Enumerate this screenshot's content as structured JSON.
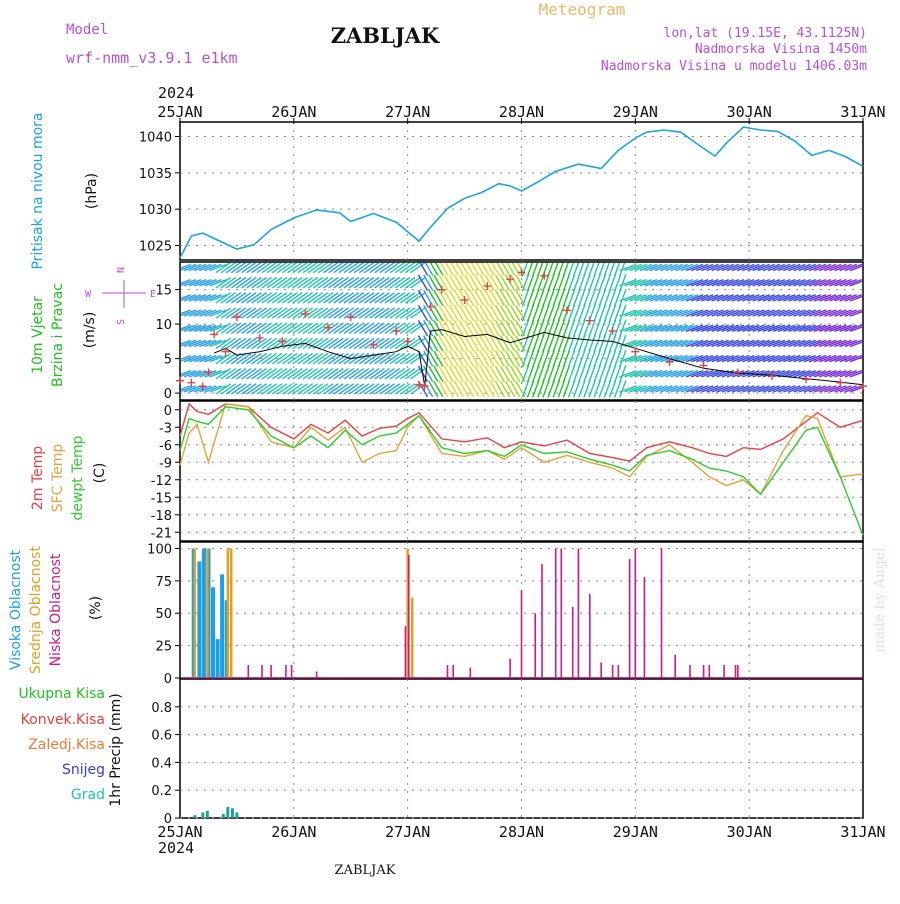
{
  "header": {
    "model_label": "Model",
    "model_name": "wrf-nmm_v3.9.1 e1km",
    "station_title": "ZABLJAK",
    "meteogram_label": "Meteogram",
    "lonlat": "lon,lat (19.15E, 43.1125N)",
    "elevation": "Nadmorska Visina 1450m",
    "model_elevation": "Nadmorska Visina u modelu 1406.03m",
    "year_top": "2024",
    "year_bottom": "2024",
    "footer_title": "ZABLJAK",
    "watermark": "made by Angel"
  },
  "colors": {
    "pressure": "#1aa3e6",
    "t2m": "#e84040",
    "sfc": "#e3a33a",
    "dew": "#2ecc2e",
    "high_cloud": "#1e9ee6",
    "mid_cloud": "#e3a020",
    "low_cloud": "#cc1a8a",
    "magenta_label": "#b84fd6",
    "gust": "#e04040",
    "wind_mean": "#000000"
  },
  "chart_data": [
    {
      "type": "line",
      "panel": "pressure",
      "ylabel_lines": [
        "Pritisak na nivou mora",
        "(hPa)"
      ],
      "ylim": [
        1023,
        1042
      ],
      "yticks": [
        "1025",
        "1030",
        "1035",
        "1040"
      ],
      "x_ticks": [
        "25JAN",
        "26JAN",
        "27JAN",
        "28JAN",
        "29JAN",
        "30JAN",
        "31JAN"
      ],
      "x_days": [
        0,
        6
      ],
      "series": [
        {
          "x": [
            0,
            0.1,
            0.2,
            0.35,
            0.5,
            0.65,
            0.8,
            1.0,
            1.2,
            1.4,
            1.5,
            1.7,
            1.9,
            2.0,
            2.1,
            2.2,
            2.35,
            2.5,
            2.65,
            2.8,
            2.9,
            3.0,
            3.15,
            3.3,
            3.5,
            3.7,
            3.85,
            4.0,
            4.1,
            4.25,
            4.4,
            4.55,
            4.7,
            4.8,
            4.95,
            5.1,
            5.25,
            5.4,
            5.55,
            5.7,
            5.85,
            6.0
          ],
          "values": [
            1023.3,
            1026.3,
            1026.7,
            1025.6,
            1024.5,
            1025.1,
            1027.2,
            1028.8,
            1029.9,
            1029.5,
            1028.3,
            1029.4,
            1028.2,
            1026.9,
            1025.6,
            1027.5,
            1030.1,
            1031.5,
            1032.3,
            1033.5,
            1033.2,
            1032.5,
            1033.8,
            1035.2,
            1036.2,
            1035.6,
            1038.1,
            1039.8,
            1040.6,
            1040.9,
            1040.6,
            1038.9,
            1037.3,
            1039.1,
            1041.3,
            1040.9,
            1040.7,
            1039.4,
            1037.4,
            1038.1,
            1037.2,
            1035.9
          ]
        }
      ]
    },
    {
      "type": "line",
      "panel": "wind",
      "ylabel_lines": [
        "10m Vjetar",
        "Brzina i Pravac",
        "(m/s)"
      ],
      "compass_labels": [
        "N",
        "E",
        "S",
        "W"
      ],
      "ylim": [
        -1,
        19
      ],
      "yticks": [
        "0",
        "5",
        "10",
        "15"
      ],
      "series": [
        {
          "name": "mean_speed",
          "x": [
            0.3,
            0.4,
            0.5,
            0.7,
            0.9,
            1.1,
            1.3,
            1.5,
            1.7,
            1.9,
            2.0,
            2.1,
            2.15,
            2.2,
            2.3,
            2.5,
            2.7,
            2.9,
            3.0,
            3.2,
            3.4,
            3.6,
            3.8,
            4.0,
            4.3,
            4.6,
            4.9,
            5.2,
            5.5,
            5.8,
            6.0
          ],
          "values": [
            5.8,
            6.5,
            5.5,
            6.0,
            6.8,
            7.2,
            6.0,
            5.0,
            5.5,
            6.0,
            6.8,
            6.0,
            1.0,
            9.0,
            9.2,
            8.2,
            8.5,
            7.3,
            7.8,
            8.8,
            8.0,
            7.7,
            7.5,
            6.5,
            5.0,
            3.6,
            2.9,
            2.6,
            2.1,
            1.6,
            1.2
          ]
        },
        {
          "name": "gust",
          "x": [
            0.0,
            0.1,
            0.2,
            0.25,
            0.3,
            0.4,
            0.5,
            0.7,
            0.9,
            1.1,
            1.3,
            1.5,
            1.7,
            1.9,
            2.0,
            2.1,
            2.15,
            2.2,
            2.3,
            2.5,
            2.7,
            2.9,
            3.0,
            3.2,
            3.4,
            3.6,
            3.8,
            4.0,
            4.3,
            4.6,
            4.9,
            5.2,
            5.5,
            5.8,
            6.0
          ],
          "values": [
            1.8,
            1.5,
            1.0,
            3.0,
            8.5,
            6.0,
            11.0,
            8.0,
            7.5,
            11.5,
            9.5,
            11.0,
            7.0,
            9.0,
            7.5,
            1.2,
            1.0,
            12.5,
            15.0,
            13.5,
            15.5,
            16.5,
            17.5,
            17.0,
            12.0,
            10.5,
            9.0,
            6.0,
            4.5,
            4.0,
            3.0,
            2.5,
            2.0,
            1.5,
            1.0
          ]
        }
      ]
    },
    {
      "type": "line",
      "panel": "temperature",
      "ylabel_lines": [
        "2m Temp",
        "SFC Temp",
        "dewpt Temp",
        "(C)"
      ],
      "ylim": [
        -22.5,
        1.5
      ],
      "yticks": [
        "0",
        "-3",
        "-6",
        "-9",
        "-12",
        "-15",
        "-18",
        "-21"
      ],
      "series": [
        {
          "name": "2m Temp",
          "x": [
            0,
            0.08,
            0.15,
            0.25,
            0.4,
            0.6,
            0.8,
            1.0,
            1.15,
            1.3,
            1.45,
            1.6,
            1.75,
            1.9,
            2.0,
            2.1,
            2.3,
            2.5,
            2.7,
            2.85,
            3.0,
            3.2,
            3.4,
            3.6,
            3.8,
            3.95,
            4.1,
            4.3,
            4.5,
            4.65,
            4.8,
            4.95,
            5.1,
            5.3,
            5.5,
            5.6,
            5.8,
            6.0
          ],
          "values": [
            -4.5,
            1.0,
            -0.3,
            -0.8,
            1.0,
            0.5,
            -3.0,
            -5.0,
            -2.5,
            -4.0,
            -1.8,
            -4.5,
            -3.2,
            -2.8,
            -1.5,
            -0.5,
            -5.0,
            -5.5,
            -4.8,
            -6.5,
            -5.5,
            -6.2,
            -5.2,
            -7.5,
            -8.2,
            -8.8,
            -6.5,
            -5.5,
            -6.5,
            -7.5,
            -8.0,
            -6.5,
            -6.8,
            -5.0,
            -2.0,
            -0.5,
            -3.0,
            -1.8
          ]
        },
        {
          "name": "SFC Temp",
          "x": [
            0,
            0.08,
            0.15,
            0.25,
            0.4,
            0.6,
            0.8,
            1.0,
            1.15,
            1.3,
            1.45,
            1.6,
            1.75,
            1.9,
            2.0,
            2.1,
            2.3,
            2.5,
            2.7,
            2.85,
            3.0,
            3.2,
            3.4,
            3.6,
            3.8,
            3.95,
            4.1,
            4.3,
            4.5,
            4.65,
            4.8,
            4.95,
            5.1,
            5.3,
            5.5,
            5.6,
            5.8,
            6.0
          ],
          "values": [
            -9.5,
            -4.0,
            -2.5,
            -9.0,
            1.0,
            0.5,
            -5.5,
            -6.5,
            -3.0,
            -5.2,
            -3.0,
            -9.0,
            -7.5,
            -7.0,
            -3.0,
            -1.0,
            -7.5,
            -8.0,
            -7.0,
            -8.5,
            -6.5,
            -9.0,
            -7.8,
            -9.0,
            -10.0,
            -11.5,
            -8.0,
            -6.0,
            -9.0,
            -11.5,
            -13.0,
            -12.0,
            -14.5,
            -7.0,
            -1.0,
            -1.5,
            -11.5,
            -11.0
          ]
        },
        {
          "name": "dewpt Temp",
          "x": [
            0,
            0.08,
            0.15,
            0.25,
            0.4,
            0.6,
            0.8,
            1.0,
            1.15,
            1.3,
            1.45,
            1.6,
            1.75,
            1.9,
            2.0,
            2.1,
            2.3,
            2.5,
            2.7,
            2.85,
            3.0,
            3.2,
            3.4,
            3.6,
            3.8,
            3.95,
            4.1,
            4.3,
            4.5,
            4.65,
            4.8,
            4.95,
            5.1,
            5.3,
            5.5,
            5.6,
            5.8,
            6.0
          ],
          "values": [
            -7.0,
            -1.5,
            -2.0,
            -2.5,
            0.5,
            0.0,
            -4.5,
            -6.5,
            -4.5,
            -6.5,
            -3.5,
            -6.0,
            -4.5,
            -4.0,
            -2.5,
            -1.0,
            -6.5,
            -7.5,
            -7.0,
            -8.0,
            -6.0,
            -7.5,
            -7.2,
            -8.5,
            -9.5,
            -10.5,
            -7.8,
            -7.0,
            -8.5,
            -10.0,
            -10.5,
            -11.5,
            -14.5,
            -9.0,
            -3.5,
            -3.0,
            -11.5,
            -21.5
          ]
        }
      ]
    },
    {
      "type": "bar",
      "panel": "clouds",
      "ylabel_lines": [
        "Visoka Oblacnost",
        "Srednja Oblacnost",
        "Niska Oblacnost",
        "(%)"
      ],
      "ylim": [
        0,
        105
      ],
      "yticks": [
        "0",
        "25",
        "50",
        "75",
        "100"
      ],
      "series": [
        {
          "name": "Visoka Oblacnost",
          "x": [
            0.12,
            0.17,
            0.21,
            0.25,
            0.29,
            0.33,
            0.37,
            0.41
          ],
          "values": [
            100,
            90,
            100,
            100,
            70,
            30,
            80,
            60
          ]
        },
        {
          "name": "Srednja Oblacnost",
          "x": [
            0.13,
            0.24,
            0.42,
            0.45,
            2.0,
            2.04
          ],
          "values": [
            100,
            100,
            100,
            100,
            100,
            62
          ]
        },
        {
          "name": "Niska Oblacnost",
          "x": [
            0.6,
            0.72,
            0.8,
            0.93,
            0.98,
            1.2,
            1.98,
            2.01,
            2.35,
            2.4,
            2.55,
            2.9,
            3.0,
            3.12,
            3.18,
            3.3,
            3.35,
            3.45,
            3.5,
            3.6,
            3.7,
            3.8,
            3.85,
            3.95,
            4.0,
            4.08,
            4.23,
            4.35,
            4.48,
            4.6,
            4.65,
            4.78,
            4.88,
            4.9
          ],
          "values": [
            10,
            10,
            10,
            10,
            10,
            5,
            40,
            95,
            10,
            10,
            8,
            15,
            68,
            50,
            88,
            100,
            100,
            55,
            100,
            65,
            12,
            10,
            10,
            92,
            100,
            78,
            100,
            18,
            10,
            10,
            10,
            10,
            10,
            10
          ]
        }
      ]
    },
    {
      "type": "bar",
      "panel": "precip",
      "ylabel_lines": [
        "1hr Precip (mm)"
      ],
      "legend": [
        "Ukupna Kisa",
        "Konvek.Kisa",
        "Zaledj.Kisa",
        "Snijeg",
        "Grad"
      ],
      "ylim": [
        0,
        1.0
      ],
      "yticks": [
        "0",
        "0.2",
        "0.4",
        "0.6",
        "0.8"
      ],
      "series": [
        {
          "name": "precip",
          "x": [
            0.13,
            0.2,
            0.24,
            0.38,
            0.42,
            0.46,
            0.5
          ],
          "values": [
            0.02,
            0.04,
            0.05,
            0.03,
            0.08,
            0.07,
            0.04
          ]
        }
      ]
    }
  ]
}
